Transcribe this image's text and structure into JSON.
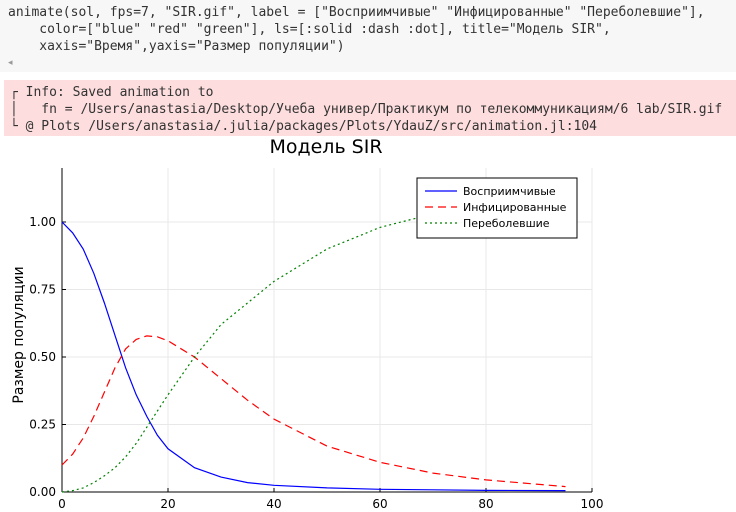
{
  "code_cell": {
    "lines": [
      "animate(sol, fps=7, \"SIR.gif\", label = [\"Восприимчивые\" \"Инфицированные\" \"Переболевшие\"],",
      "    color=[\"blue\" \"red\" \"green\"], ls=[:solid :dash :dot], title=\"Модель SIR\",",
      "    xaxis=\"Время\",yaxis=\"Размер популяции\")"
    ]
  },
  "info_output": {
    "lines": [
      "┌ Info: Saved animation to",
      "│   fn = /Users/anastasia/Desktop/Учеба универ/Практикум по телекоммуникациям/6 lab/SIR.gif",
      "└ @ Plots /Users/anastasia/.julia/packages/Plots/YdauZ/src/animation.jl:104"
    ],
    "background": "#fddddd"
  },
  "chart_data": {
    "type": "line",
    "title": "Модель SIR",
    "xlabel": "",
    "ylabel": "Размер популяции",
    "xlim": [
      0,
      100
    ],
    "ylim": [
      0,
      1.2
    ],
    "xticks": [
      "0",
      "20",
      "40",
      "60",
      "80",
      "100"
    ],
    "yticks": [
      "0.00",
      "0.25",
      "0.50",
      "0.75",
      "1.00"
    ],
    "grid": true,
    "legend_position": "top-right",
    "series": [
      {
        "name": "Восприимчивые",
        "color": "#0000ff",
        "style": "solid",
        "x": [
          0,
          2,
          4,
          6,
          8,
          10,
          12,
          14,
          16,
          18,
          20,
          25,
          30,
          35,
          40,
          50,
          60,
          70,
          80,
          95
        ],
        "y": [
          1.0,
          0.96,
          0.9,
          0.81,
          0.7,
          0.58,
          0.46,
          0.36,
          0.28,
          0.21,
          0.16,
          0.09,
          0.055,
          0.035,
          0.025,
          0.015,
          0.01,
          0.008,
          0.006,
          0.005
        ]
      },
      {
        "name": "Инфицированные",
        "color": "#ff0000",
        "style": "dash",
        "x": [
          0,
          2,
          4,
          6,
          8,
          10,
          12,
          14,
          16,
          18,
          20,
          25,
          30,
          35,
          40,
          50,
          60,
          70,
          80,
          95
        ],
        "y": [
          0.1,
          0.14,
          0.2,
          0.28,
          0.37,
          0.46,
          0.53,
          0.565,
          0.578,
          0.575,
          0.56,
          0.5,
          0.42,
          0.34,
          0.27,
          0.17,
          0.11,
          0.07,
          0.045,
          0.02
        ]
      },
      {
        "name": "Переболевшие",
        "color": "#008000",
        "style": "dot",
        "x": [
          0,
          2,
          4,
          6,
          8,
          10,
          12,
          14,
          16,
          18,
          20,
          25,
          30,
          35,
          40,
          50,
          60,
          70,
          80,
          95
        ],
        "y": [
          0.0,
          0.005,
          0.015,
          0.035,
          0.06,
          0.09,
          0.13,
          0.18,
          0.24,
          0.3,
          0.36,
          0.5,
          0.62,
          0.7,
          0.78,
          0.9,
          0.98,
          1.03,
          1.06,
          1.08
        ]
      }
    ]
  }
}
